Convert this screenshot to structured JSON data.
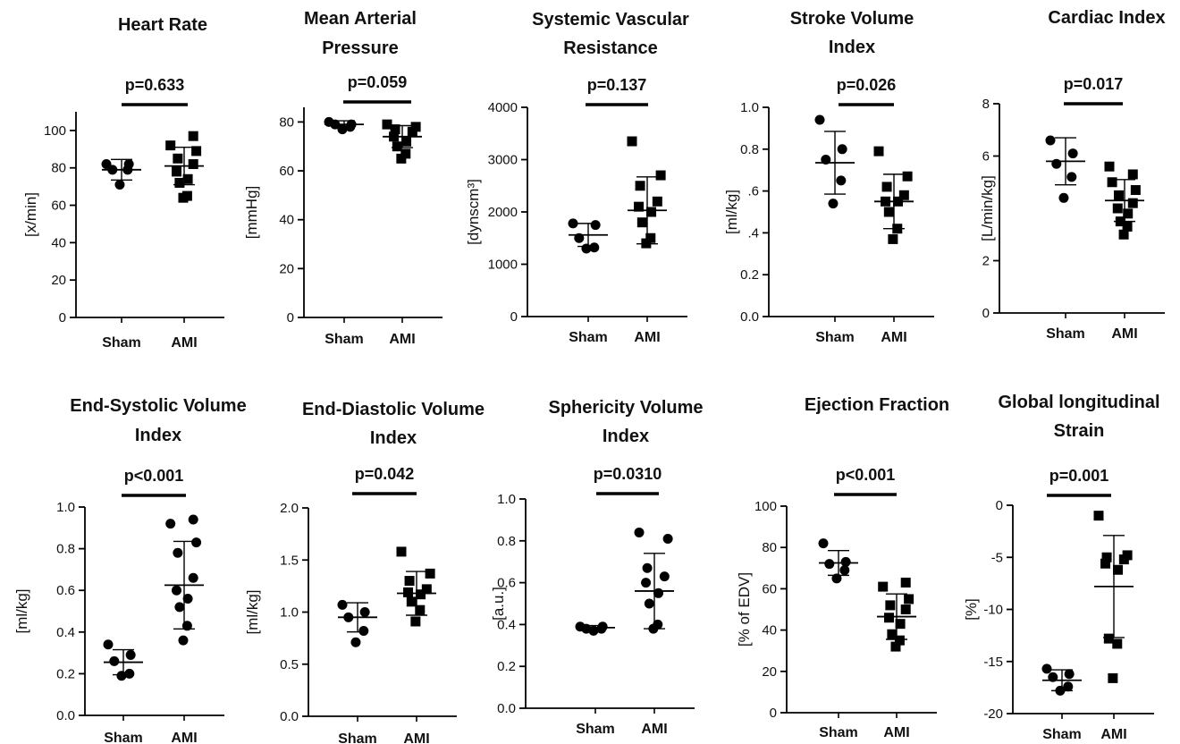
{
  "chart_data": [
    {
      "type": "scatter",
      "title": [
        "Heart Rate"
      ],
      "pvalue": "p=0.633",
      "ylabel": "[x/min]",
      "ylim": [
        0,
        110
      ],
      "yticks": [
        0,
        20,
        40,
        60,
        80,
        100
      ],
      "ytick_labels": [
        "0",
        "20",
        "40",
        "60",
        "80",
        "100"
      ],
      "categories": [
        "Sham",
        "AMI"
      ],
      "series": [
        {
          "name": "Sham",
          "marker": "circle",
          "values": [
            71,
            79,
            79,
            82,
            82
          ],
          "mean": 79,
          "sd": 5.5
        },
        {
          "name": "AMI",
          "marker": "square",
          "values": [
            64,
            65,
            72,
            74,
            78,
            82,
            85,
            89,
            92,
            97
          ],
          "mean": 81,
          "sd": 10
        }
      ]
    },
    {
      "type": "scatter",
      "title": [
        "Mean Arterial",
        "Pressure"
      ],
      "pvalue": "p=0.059",
      "ylabel": "[mmHg]",
      "ylim": [
        0,
        86
      ],
      "yticks": [
        0,
        20,
        40,
        60,
        80
      ],
      "ytick_labels": [
        "0",
        "20",
        "40",
        "60",
        "80"
      ],
      "categories": [
        "Sham",
        "AMI"
      ],
      "series": [
        {
          "name": "Sham",
          "marker": "circle",
          "values": [
            77,
            78,
            79,
            79,
            80
          ],
          "mean": 79,
          "sd": 1.5
        },
        {
          "name": "AMI",
          "marker": "square",
          "values": [
            65,
            67,
            70,
            72,
            74,
            76,
            77,
            78,
            79
          ],
          "mean": 74,
          "sd": 4.5
        }
      ]
    },
    {
      "type": "scatter",
      "title": [
        "Systemic Vascular",
        "Resistance"
      ],
      "pvalue": "p=0.137",
      "ylabel": "[dynscm³]",
      "ylim": [
        0,
        4000
      ],
      "yticks": [
        0,
        1000,
        2000,
        3000,
        4000
      ],
      "ytick_labels": [
        "0",
        "1000",
        "2000",
        "3000",
        "4000"
      ],
      "categories": [
        "Sham",
        "AMI"
      ],
      "series": [
        {
          "name": "Sham",
          "marker": "circle",
          "values": [
            1300,
            1320,
            1500,
            1750,
            1780
          ],
          "mean": 1560,
          "sd": 220
        },
        {
          "name": "AMI",
          "marker": "square",
          "values": [
            1400,
            1500,
            1800,
            2000,
            2100,
            2200,
            2500,
            2700,
            3350
          ],
          "mean": 2030,
          "sd": 640
        }
      ]
    },
    {
      "type": "scatter",
      "title": [
        "Stroke Volume",
        "Index"
      ],
      "pvalue": "p=0.026",
      "ylabel": "[ml/kg]",
      "ylim": [
        0,
        1.0
      ],
      "yticks": [
        0,
        0.2,
        0.4,
        0.6,
        0.8,
        1.0
      ],
      "ytick_labels": [
        "0.0",
        "0.2",
        ".4",
        ".6",
        "0.8",
        "1.0"
      ],
      "categories": [
        "Sham",
        "AMI"
      ],
      "series": [
        {
          "name": "Sham",
          "marker": "circle",
          "values": [
            0.54,
            0.65,
            0.75,
            0.8,
            0.94
          ],
          "mean": 0.735,
          "sd": 0.15
        },
        {
          "name": "AMI",
          "marker": "square",
          "values": [
            0.37,
            0.42,
            0.5,
            0.55,
            0.55,
            0.58,
            0.62,
            0.67,
            0.79
          ],
          "mean": 0.55,
          "sd": 0.13
        }
      ]
    },
    {
      "type": "scatter",
      "title": [
        "Cardiac Index"
      ],
      "pvalue": "p=0.017",
      "ylabel": "[L/min/kg]",
      "ylim": [
        0,
        8
      ],
      "yticks": [
        0,
        2,
        6,
        8
      ],
      "ytick_labels": [
        "0",
        "2",
        "6",
        "8"
      ],
      "categories": [
        "Sham",
        "AMI"
      ],
      "series": [
        {
          "name": "Sham",
          "marker": "circle",
          "values": [
            4.4,
            5.2,
            5.7,
            6.1,
            6.6
          ],
          "mean": 5.8,
          "sd": 0.9
        },
        {
          "name": "AMI",
          "marker": "square",
          "values": [
            3.0,
            3.3,
            3.5,
            3.8,
            4.0,
            4.2,
            4.5,
            4.7,
            5.0,
            5.3,
            5.6
          ],
          "mean": 4.3,
          "sd": 0.8
        }
      ]
    },
    {
      "type": "scatter",
      "title": [
        "End-Systolic Volume",
        "Index"
      ],
      "pvalue": "p<0.001",
      "ylabel": "[ml/kg]",
      "ylim": [
        0,
        1.0
      ],
      "yticks": [
        0,
        0.2,
        0.4,
        0.6,
        0.8,
        1.0
      ],
      "ytick_labels": [
        "0.0",
        "0.2",
        "0.4",
        "0.6",
        "0.8",
        "1.0"
      ],
      "categories": [
        "Sham",
        "AMI"
      ],
      "series": [
        {
          "name": "Sham",
          "marker": "circle",
          "values": [
            0.19,
            0.2,
            0.26,
            0.29,
            0.34
          ],
          "mean": 0.255,
          "sd": 0.06
        },
        {
          "name": "AMI",
          "marker": "circle",
          "values": [
            0.36,
            0.43,
            0.52,
            0.56,
            0.6,
            0.66,
            0.78,
            0.83,
            0.92,
            0.94
          ],
          "mean": 0.625,
          "sd": 0.21
        }
      ]
    },
    {
      "type": "scatter",
      "title": [
        "End-Diastolic Volume",
        "Index"
      ],
      "pvalue": "p=0.042",
      "ylabel": "[ml/kg]",
      "ylim": [
        0,
        2.0
      ],
      "yticks": [
        0,
        0.5,
        1.0,
        1.5,
        2.0
      ],
      "ytick_labels": [
        "0.0",
        "0.5",
        "1.0",
        "1.5",
        "2.0"
      ],
      "categories": [
        "Sham",
        "AMI"
      ],
      "series": [
        {
          "name": "Sham",
          "marker": "circle",
          "values": [
            0.71,
            0.82,
            0.95,
            1.0,
            1.07
          ],
          "mean": 0.95,
          "sd": 0.14
        },
        {
          "name": "AMI",
          "marker": "square",
          "values": [
            0.91,
            1.02,
            1.1,
            1.17,
            1.19,
            1.22,
            1.3,
            1.37,
            1.58
          ],
          "mean": 1.18,
          "sd": 0.21
        }
      ]
    },
    {
      "type": "scatter",
      "title": [
        "Sphericity Volume",
        "Index"
      ],
      "pvalue": "p=0.0310",
      "ylabel": "[a.u.]",
      "ylim": [
        0,
        1.0
      ],
      "yticks": [
        0,
        0.2,
        0.4,
        0.6,
        0.8,
        1.0
      ],
      "ytick_labels": [
        "0.0",
        "0.2",
        "0.4",
        "0.6",
        "0.8",
        "1.0"
      ],
      "categories": [
        "Sham",
        "AMI"
      ],
      "series": [
        {
          "name": "Sham",
          "marker": "circle",
          "values": [
            0.37,
            0.38,
            0.38,
            0.39,
            0.39
          ],
          "mean": 0.385,
          "sd": 0.01
        },
        {
          "name": "AMI",
          "marker": "circle",
          "values": [
            0.38,
            0.4,
            0.5,
            0.55,
            0.6,
            0.63,
            0.67,
            0.81,
            0.84
          ],
          "mean": 0.56,
          "sd": 0.18
        }
      ]
    },
    {
      "type": "scatter",
      "title": [
        "Ejection Fraction"
      ],
      "pvalue": "p<0.001",
      "ylabel": "[% of EDV]",
      "ylim": [
        0,
        100
      ],
      "yticks": [
        0,
        20,
        40,
        60,
        80,
        100
      ],
      "ytick_labels": [
        "0",
        "20",
        "40",
        "60",
        "80",
        "100"
      ],
      "categories": [
        "Sham",
        "AMI"
      ],
      "series": [
        {
          "name": "Sham",
          "marker": "circle",
          "values": [
            65,
            69,
            72,
            73,
            82
          ],
          "mean": 72.5,
          "sd": 6
        },
        {
          "name": "AMI",
          "marker": "square",
          "values": [
            32,
            35,
            38,
            43,
            46,
            50,
            52,
            55,
            61,
            63
          ],
          "mean": 46.5,
          "sd": 11
        }
      ]
    },
    {
      "type": "scatter",
      "title": [
        "Global longitudinal",
        "Strain"
      ],
      "pvalue": "p=0.001",
      "ylabel": "[%]",
      "ylim": [
        -20,
        0
      ],
      "yticks": [
        -20,
        -15,
        -10,
        -5,
        0
      ],
      "ytick_labels": [
        "-20",
        "-15",
        "-10",
        "-5",
        "0"
      ],
      "categories": [
        "Sham",
        "AMI"
      ],
      "series": [
        {
          "name": "Sham",
          "marker": "circle",
          "values": [
            -17.8,
            -17.4,
            -16.5,
            -16.2,
            -15.7
          ],
          "mean": -16.8,
          "sd": 1
        },
        {
          "name": "AMI",
          "marker": "square",
          "values": [
            -16.6,
            -13.3,
            -12.8,
            -6.2,
            -5.6,
            -5.2,
            -5.0,
            -4.8,
            -1.0
          ],
          "mean": -7.8,
          "sd": 4.9
        }
      ]
    }
  ]
}
